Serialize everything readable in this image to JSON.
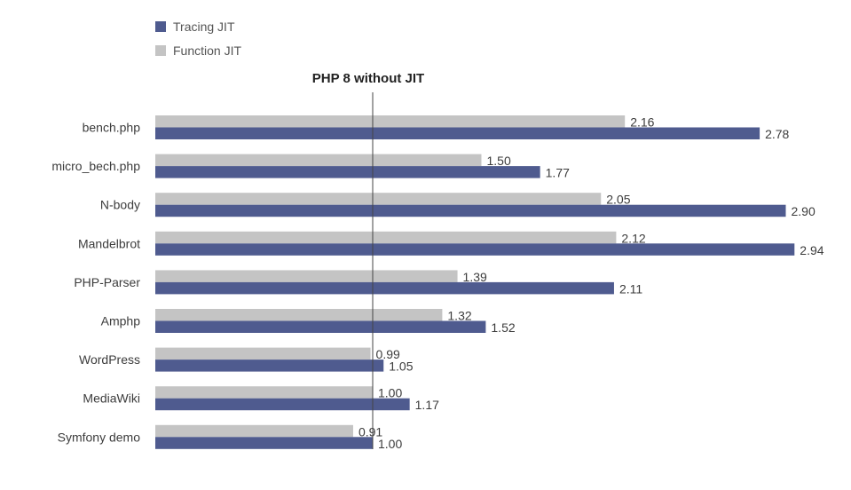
{
  "chart_data": {
    "type": "bar",
    "orientation": "horizontal",
    "categories": [
      "bench.php",
      "micro_bech.php",
      "N-body",
      "Mandelbrot",
      "PHP-Parser",
      "Amphp",
      "WordPress",
      "MediaWiki",
      "Symfony demo"
    ],
    "series": [
      {
        "name": "Function JIT",
        "color": "#c4c4c4",
        "values": [
          2.16,
          1.5,
          2.05,
          2.12,
          1.39,
          1.32,
          0.99,
          1.0,
          0.91
        ]
      },
      {
        "name": "Tracing JIT",
        "color": "#4f5b8f",
        "values": [
          2.78,
          1.77,
          2.9,
          2.94,
          2.11,
          1.52,
          1.05,
          1.17,
          1.0
        ]
      }
    ],
    "legend_order": [
      "Tracing JIT",
      "Function JIT"
    ],
    "legend_placement": "top-left",
    "reference_line": {
      "value": 1.0,
      "label": "PHP 8 without JIT"
    },
    "xlim": [
      0,
      3.0
    ],
    "grid": false
  }
}
